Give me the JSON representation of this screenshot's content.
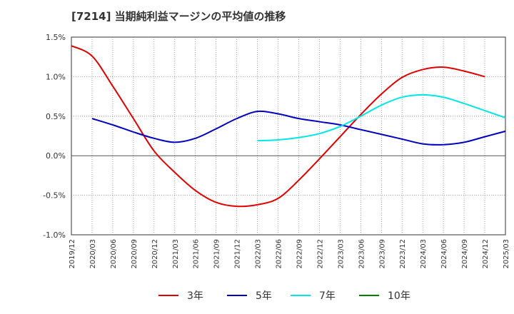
{
  "chart_data": {
    "type": "line",
    "title": "[7214]  当期純利益マージンの平均値の推移",
    "xlabel": "",
    "ylabel": "",
    "ylim": [
      -1.0,
      1.5
    ],
    "y_ticks": [
      "1.5%",
      "1.0%",
      "0.5%",
      "0.0%",
      "-0.5%",
      "-1.0%"
    ],
    "y_tick_values": [
      1.5,
      1.0,
      0.5,
      0.0,
      -0.5,
      -1.0
    ],
    "x_ticks": [
      "2019/12",
      "2020/03",
      "2020/06",
      "2020/09",
      "2020/12",
      "2021/03",
      "2021/06",
      "2021/09",
      "2021/12",
      "2022/03",
      "2022/06",
      "2022/09",
      "2022/12",
      "2023/03",
      "2023/06",
      "2023/09",
      "2023/12",
      "2024/03",
      "2024/06",
      "2024/09",
      "2024/12",
      "2025/03"
    ],
    "grid": true,
    "legend_position": "bottom",
    "series": [
      {
        "name": "3年",
        "color": "#e00000",
        "start_index": 0,
        "values": [
          1.39,
          1.26,
          0.88,
          0.47,
          0.06,
          -0.21,
          -0.44,
          -0.59,
          -0.64,
          -0.62,
          -0.54,
          -0.31,
          -0.04,
          0.24,
          0.52,
          0.78,
          0.99,
          1.09,
          1.12,
          1.07,
          1.0
        ]
      },
      {
        "name": "5年",
        "color": "#0000c0",
        "start_index": 1,
        "values": [
          0.47,
          0.39,
          0.3,
          0.22,
          0.17,
          0.22,
          0.34,
          0.47,
          0.56,
          0.53,
          0.47,
          0.43,
          0.39,
          0.33,
          0.27,
          0.21,
          0.15,
          0.14,
          0.17,
          0.24,
          0.31
        ]
      },
      {
        "name": "7年",
        "color": "#00e6e6",
        "start_index": 9,
        "values": [
          0.19,
          0.2,
          0.23,
          0.28,
          0.37,
          0.5,
          0.64,
          0.74,
          0.77,
          0.74,
          0.66,
          0.57,
          0.48
        ]
      },
      {
        "name": "10年",
        "color": "#008000",
        "start_index": 0,
        "values": []
      }
    ]
  }
}
